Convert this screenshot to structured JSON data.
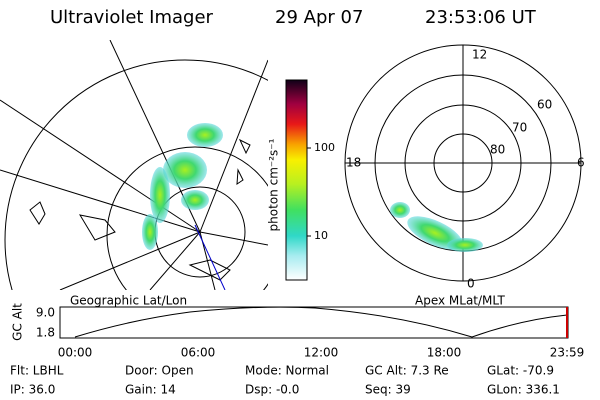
{
  "header": {
    "title": "Ultraviolet Imager",
    "date": "29 Apr 07",
    "time": "23:53:06 UT"
  },
  "geo_map": {
    "label": "Geographic Lat/Lon"
  },
  "colorbar": {
    "label": "photon cm⁻²s⁻¹",
    "ticks": [
      "100",
      "10"
    ]
  },
  "polar_map": {
    "label": "Apex MLat/MLT",
    "hours": [
      "12",
      "18",
      "6",
      "0"
    ],
    "latitudes": [
      "60",
      "70",
      "80"
    ]
  },
  "altitude": {
    "label": "GC Alt",
    "yticks": [
      "9.0",
      "1.8"
    ],
    "xticks": [
      "00:00",
      "06:00",
      "12:00",
      "18:00",
      "23:59"
    ]
  },
  "footer": {
    "rows": [
      [
        "Flt: LBHL",
        "Door: Open",
        "Mode: Normal",
        "GC Alt: 7.3 Re",
        "GLat: -70.9"
      ],
      [
        "IP: 36.0",
        "Gain: 14",
        "Dsp: -0.0",
        "Seq: 39",
        "GLon: 336.1"
      ]
    ]
  }
}
